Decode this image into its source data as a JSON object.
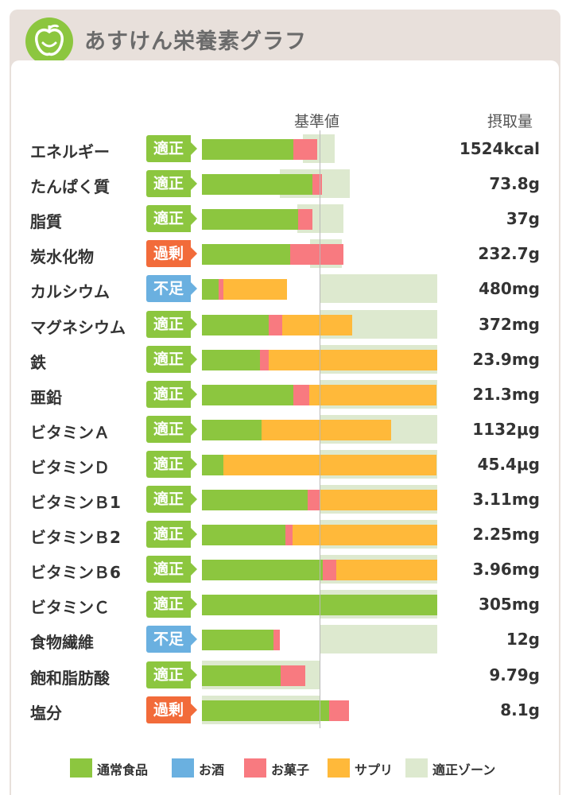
{
  "app": {
    "title": "あすけん栄養素グラフ",
    "logo": "apple-face-icon"
  },
  "colors": {
    "food": "#8cc63f",
    "alcohol": "#6ab0e0",
    "snacks": "#f87a80",
    "supplement": "#ffb93a",
    "zone": "#dde9cf",
    "ok": "#8cc63f",
    "over": "#f26b3a",
    "under": "#6ab0e0"
  },
  "header": {
    "standard": "基準値",
    "intake": "摂取量"
  },
  "chart_data": {
    "type": "bar",
    "stacked": true,
    "orientation": "horizontal",
    "reference_percent": 100,
    "series": [
      {
        "name": "通常食品",
        "key": "food"
      },
      {
        "name": "お菓子",
        "key": "snacks"
      },
      {
        "name": "サプリ",
        "key": "supplement"
      }
    ],
    "rows": [
      {
        "label": "エネルギー",
        "status": "適正",
        "status_type": "ok",
        "value": "1524kcal",
        "zone": [
          86,
          113
        ],
        "food": 78,
        "snacks": 0,
        "supplement": 0,
        "extra_snacks": 20
      },
      {
        "label": "たんぱく質",
        "status": "適正",
        "status_type": "ok",
        "value": "73.8g",
        "zone": [
          66,
          126
        ],
        "food": 94,
        "snacks": 8,
        "supplement": 0
      },
      {
        "label": "脂質",
        "status": "適正",
        "status_type": "ok",
        "value": "37g",
        "zone": [
          81,
          120
        ],
        "food": 82,
        "snacks": 12,
        "supplement": 0
      },
      {
        "label": "炭水化物",
        "status": "過剰",
        "status_type": "over",
        "value": "232.7g",
        "zone": [
          92,
          119
        ],
        "food": 75,
        "snacks": 45,
        "supplement": 0
      },
      {
        "label": "カルシウム",
        "status": "不足",
        "status_type": "under",
        "value": "480mg",
        "zone": [
          100,
          200
        ],
        "food": 14,
        "snacks": 4,
        "supplement": 54
      },
      {
        "label": "マグネシウム",
        "status": "適正",
        "status_type": "ok",
        "value": "372mg",
        "zone": [
          100,
          200
        ],
        "food": 57,
        "snacks": 11,
        "supplement": 60
      },
      {
        "label": "鉄",
        "status": "適正",
        "status_type": "ok",
        "value": "23.9mg",
        "zone": [
          100,
          200
        ],
        "food": 49,
        "snacks": 8,
        "supplement": 143
      },
      {
        "label": "亜鉛",
        "status": "適正",
        "status_type": "ok",
        "value": "21.3mg",
        "zone": [
          100,
          200
        ],
        "food": 78,
        "snacks": 13,
        "supplement": 108
      },
      {
        "label": "ビタミンＡ",
        "status": "適正",
        "status_type": "ok",
        "value": "1132μg",
        "zone": [
          100,
          200
        ],
        "food": 51,
        "snacks": 0,
        "supplement": 110
      },
      {
        "label": "ビタミンＤ",
        "status": "適正",
        "status_type": "ok",
        "value": "45.4μg",
        "zone": [
          100,
          200
        ],
        "food": 18,
        "snacks": 0,
        "supplement": 181
      },
      {
        "label": "ビタミンＢ1",
        "status": "適正",
        "status_type": "ok",
        "value": "3.11mg",
        "zone": [
          100,
          200
        ],
        "food": 90,
        "snacks": 11,
        "supplement": 99
      },
      {
        "label": "ビタミンＢ2",
        "status": "適正",
        "status_type": "ok",
        "value": "2.25mg",
        "zone": [
          100,
          200
        ],
        "food": 71,
        "snacks": 6,
        "supplement": 123
      },
      {
        "label": "ビタミンＢ6",
        "status": "適正",
        "status_type": "ok",
        "value": "3.96mg",
        "zone": [
          100,
          200
        ],
        "food": 103,
        "snacks": 11,
        "supplement": 86
      },
      {
        "label": "ビタミンＣ",
        "status": "適正",
        "status_type": "ok",
        "value": "305mg",
        "zone": [
          100,
          200
        ],
        "food": 200,
        "snacks": 0,
        "supplement": 0
      },
      {
        "label": "食物繊維",
        "status": "不足",
        "status_type": "under",
        "value": "12g",
        "zone": [
          100,
          200
        ],
        "food": 61,
        "snacks": 5,
        "supplement": 0
      },
      {
        "label": "飽和脂肪酸",
        "status": "適正",
        "status_type": "ok",
        "value": "9.79g",
        "zone": [
          0,
          100
        ],
        "food": 67,
        "snacks": 21,
        "supplement": 0
      },
      {
        "label": "塩分",
        "status": "過剰",
        "status_type": "over",
        "value": "8.1g",
        "zone": [
          0,
          100
        ],
        "food": 108,
        "snacks": 17,
        "supplement": 0
      }
    ]
  },
  "legend": [
    {
      "label": "通常食品",
      "color": "#8cc63f"
    },
    {
      "label": "お酒",
      "color": "#6ab0e0"
    },
    {
      "label": "お菓子",
      "color": "#f87a80"
    },
    {
      "label": "サプリ",
      "color": "#ffb93a"
    },
    {
      "label": "適正ゾーン",
      "color": "#dde9cf"
    }
  ]
}
